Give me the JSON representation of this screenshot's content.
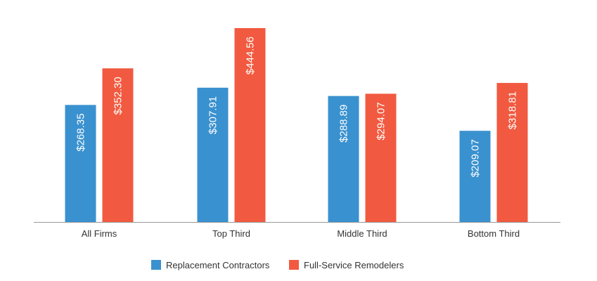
{
  "chart_data": {
    "type": "bar",
    "title": "",
    "xlabel": "",
    "ylabel": "",
    "categories": [
      "All Firms",
      "Top Third",
      "Middle Third",
      "Bottom Third"
    ],
    "series": [
      {
        "name": "Replacement Contractors",
        "color": "#3a91cf",
        "values": [
          268.35,
          307.91,
          288.89,
          209.07
        ],
        "labels": [
          "$268.35",
          "$307.91",
          "$288.89",
          "$209.07"
        ]
      },
      {
        "name": "Full-Service Remodelers",
        "color": "#f15a40",
        "values": [
          352.3,
          444.56,
          294.07,
          318.81
        ],
        "labels": [
          "$352.30",
          "$444.56",
          "$294.07",
          "$318.81"
        ]
      }
    ],
    "ylim": [
      0,
      509
    ],
    "grid": false,
    "legend_position": "bottom-center"
  }
}
